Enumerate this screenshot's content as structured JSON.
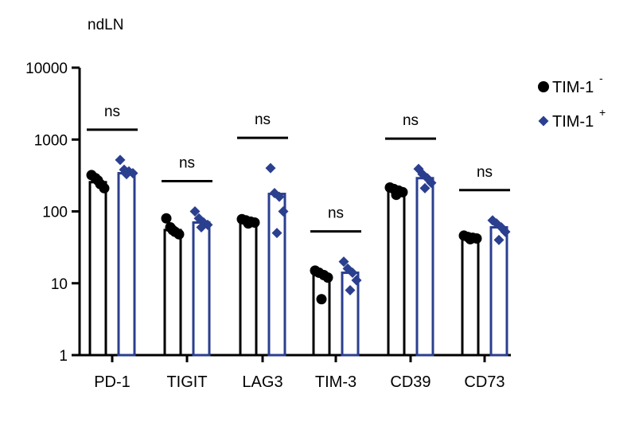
{
  "chart_data": {
    "type": "bar",
    "title": "ndLN",
    "yscale": "log",
    "ylim": [
      1,
      10000
    ],
    "yticks": [
      1,
      10,
      100,
      1000,
      10000
    ],
    "ytick_labels": [
      "1",
      "10",
      "100",
      "1000",
      "10000"
    ],
    "categories": [
      "PD-1",
      "TIGIT",
      "LAG3",
      "TIM-3",
      "CD39",
      "CD73"
    ],
    "significance": [
      "ns",
      "ns",
      "ns",
      "ns",
      "ns",
      "ns"
    ],
    "legend_position": "top-right",
    "series": [
      {
        "name": "TIM-1",
        "superscript": "-",
        "color": "#000000",
        "marker": "circle",
        "values": [
          255,
          55,
          72,
          13,
          195,
          43
        ],
        "points": [
          [
            320,
            290,
            240,
            210,
            270
          ],
          [
            80,
            60,
            52,
            48,
            55
          ],
          [
            78,
            75,
            72,
            70,
            68
          ],
          [
            15,
            14,
            13,
            12,
            6
          ],
          [
            215,
            205,
            195,
            185,
            170
          ],
          [
            46,
            44,
            43,
            42,
            41
          ]
        ]
      },
      {
        "name": "TIM-1",
        "superscript": "+",
        "color": "#2B3F8F",
        "marker": "diamond",
        "values": [
          340,
          70,
          175,
          14,
          290,
          60
        ],
        "points": [
          [
            520,
            380,
            360,
            340,
            330
          ],
          [
            100,
            80,
            70,
            65,
            60
          ],
          [
            400,
            180,
            160,
            100,
            50
          ],
          [
            20,
            16,
            14,
            11,
            8
          ],
          [
            390,
            330,
            290,
            250,
            210
          ],
          [
            75,
            68,
            60,
            52,
            40
          ]
        ]
      }
    ]
  }
}
